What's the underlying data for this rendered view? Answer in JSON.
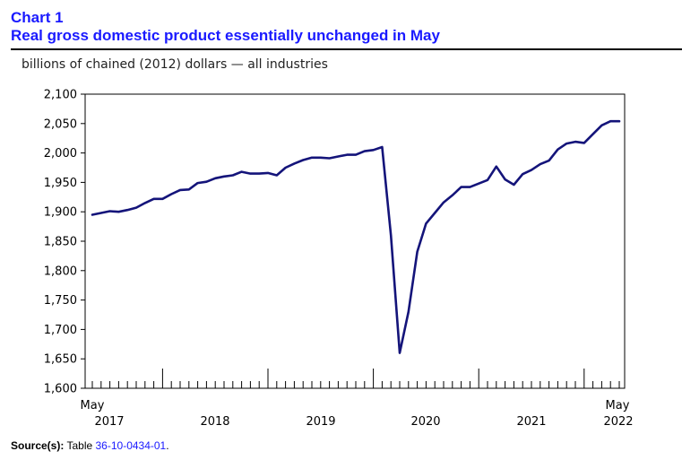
{
  "header": {
    "chart_number": "Chart 1",
    "title": "Real gross domestic product essentially unchanged in May"
  },
  "source": {
    "label": "Source(s):",
    "text": "Table",
    "table_id": "36-10-0434-01",
    "end": "."
  },
  "colors": {
    "line": "#14147a",
    "title": "#1a1aff",
    "axis": "#000000"
  },
  "chart_data": {
    "type": "line",
    "title": "Real gross domestic product essentially unchanged in May",
    "ylabel": "billions of chained (2012) dollars — all industries",
    "xlabel": "",
    "ylim": [
      1600,
      2100
    ],
    "yticks": [
      1600,
      1650,
      1700,
      1750,
      1800,
      1850,
      1900,
      1950,
      2000,
      2050,
      2100
    ],
    "ytick_labels": [
      "1,600",
      "1,650",
      "1,700",
      "1,750",
      "1,800",
      "1,850",
      "1,900",
      "1,950",
      "2,000",
      "2,050",
      "2,100"
    ],
    "x_start_label": "May",
    "x_end_label": "May",
    "year_labels": [
      "2017",
      "2018",
      "2019",
      "2020",
      "2021",
      "2022"
    ],
    "grid": false,
    "series": [
      {
        "name": "Real GDP, all industries",
        "values": [
          1895,
          1898,
          1901,
          1900,
          1903,
          1907,
          1915,
          1922,
          1922,
          1930,
          1937,
          1938,
          1949,
          1951,
          1957,
          1960,
          1962,
          1968,
          1965,
          1965,
          1966,
          1962,
          1975,
          1982,
          1988,
          1992,
          1992,
          1991,
          1994,
          1997,
          1997,
          2003,
          2005,
          2010,
          1860,
          1660,
          1730,
          1832,
          1880,
          1898,
          1916,
          1928,
          1942,
          1942,
          1948,
          1954,
          1977,
          1955,
          1946,
          1964,
          1971,
          1981,
          1987,
          2006,
          2016,
          2019,
          2017,
          2032,
          2047,
          2054,
          2054
        ]
      }
    ]
  }
}
